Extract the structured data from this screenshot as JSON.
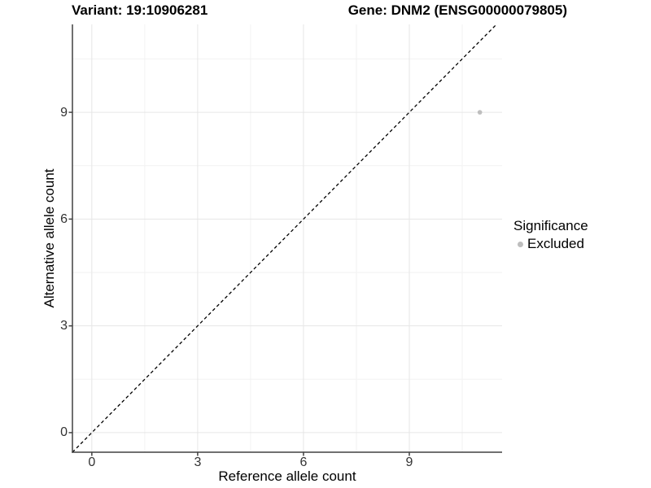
{
  "chart_data": {
    "type": "scatter",
    "title": "Variant: 19:10906281        Gene: DNM2 (ENSG00000079805)",
    "title_variant": "Variant: 19:10906281",
    "title_gene": "Gene: DNM2 (ENSG00000079805)",
    "xlabel": "Reference allele count",
    "ylabel": "Alternative allele count",
    "xlim": [
      -0.55,
      11.63
    ],
    "ylim": [
      -0.55,
      11.47
    ],
    "x_major_ticks": [
      0,
      3,
      6,
      9
    ],
    "y_major_ticks": [
      0,
      3,
      6,
      9
    ],
    "x_minor_ticks": [
      1.5,
      4.5,
      7.5,
      10.5
    ],
    "y_minor_ticks": [
      1.5,
      4.5,
      7.5,
      10.5
    ],
    "grid": true,
    "legend_position": "right",
    "series": [
      {
        "name": "Excluded",
        "color": "#bebebe",
        "points": [
          {
            "x": 11,
            "y": 9
          }
        ]
      }
    ],
    "reference_line": {
      "kind": "identity-diagonal",
      "equation": "y = x",
      "style": "dashed",
      "color": "#000000"
    },
    "legend": {
      "title": "Significance",
      "items": [
        {
          "label": "Excluded",
          "color": "#bebebe"
        }
      ]
    },
    "colors": {
      "grid_major": "#e6e6e6",
      "grid_minor": "#f2f2f2",
      "axis_line": "#404040",
      "tick_text": "#333333",
      "background": "#ffffff"
    },
    "point_radius": 2.8
  }
}
